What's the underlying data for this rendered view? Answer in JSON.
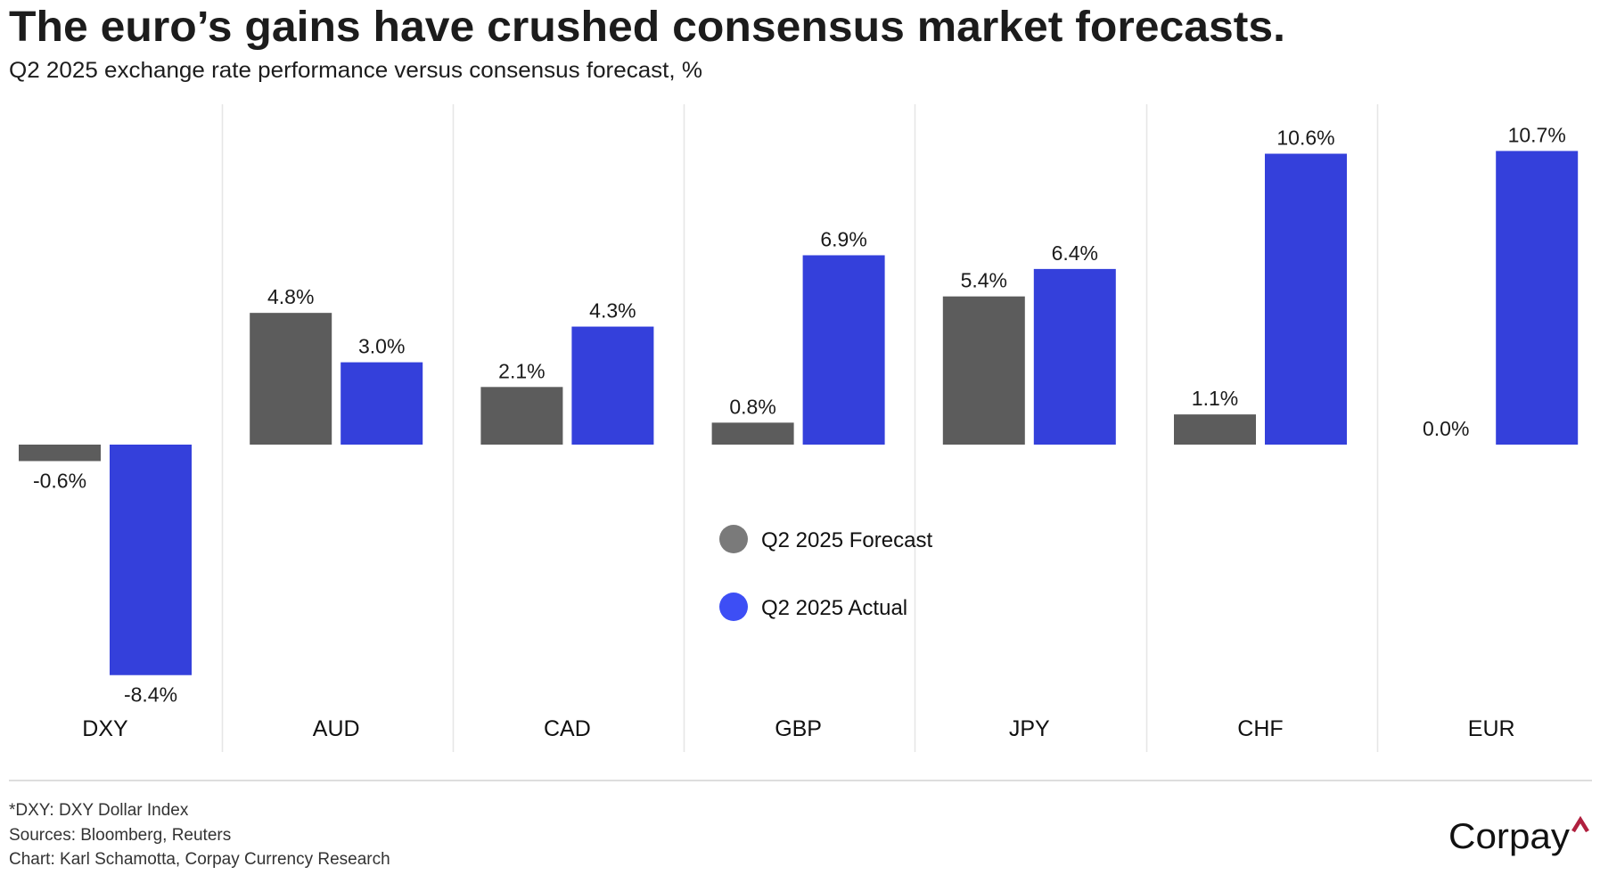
{
  "header": {
    "title": "The euro’s gains have crushed consensus market forecasts.",
    "subtitle": "Q2 2025 exchange rate performance versus consensus forecast, %"
  },
  "chart_data": {
    "type": "bar",
    "title": "The euro’s gains have crushed consensus market forecasts.",
    "subtitle": "Q2 2025 exchange rate performance versus consensus forecast, %",
    "xlabel": "",
    "ylabel": "%",
    "categories": [
      "DXY",
      "AUD",
      "CAD",
      "GBP",
      "JPY",
      "CHF",
      "EUR"
    ],
    "series": [
      {
        "name": "Q2 2025 Forecast",
        "color": "#5c5c5c",
        "legend_color": "#7a7a7a",
        "values": [
          -0.6,
          4.8,
          2.1,
          0.8,
          5.4,
          1.1,
          0.0
        ],
        "labels": [
          "-0.6%",
          "4.8%",
          "2.1%",
          "0.8%",
          "5.4%",
          "1.1%",
          "0.0%"
        ]
      },
      {
        "name": "Q2 2025 Actual",
        "color": "#3440db",
        "legend_color": "#3d4ef5",
        "values": [
          -8.4,
          3.0,
          4.3,
          6.9,
          6.4,
          10.6,
          10.7
        ],
        "labels": [
          "-8.4%",
          "3.0%",
          "4.3%",
          "6.9%",
          "6.4%",
          "10.6%",
          "10.7%"
        ]
      }
    ],
    "ylim": [
      -8.4,
      10.7
    ],
    "grid": false,
    "legend_position": "center",
    "category_separators": true
  },
  "footer": {
    "notes": [
      "*DXY: DXY Dollar Index",
      "Sources: Bloomberg, Reuters",
      "Chart: Karl Schamotta, Corpay Currency Research"
    ],
    "logo_text": "Corpay",
    "logo_caret": "^",
    "logo_caret_color": "#b0203f"
  }
}
